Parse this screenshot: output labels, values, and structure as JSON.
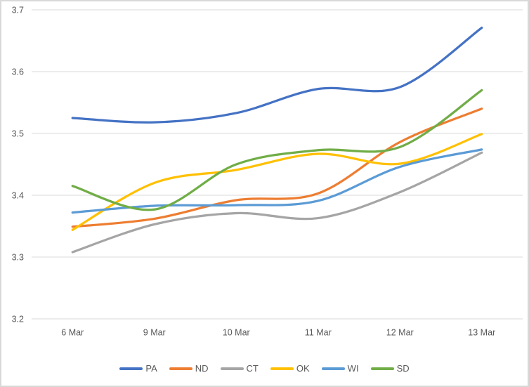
{
  "chart_data": {
    "type": "line",
    "smooth": true,
    "title": "",
    "xlabel": "",
    "ylabel": "",
    "categories": [
      "6 Mar",
      "9 Mar",
      "10 Mar",
      "11 Mar",
      "12 Mar",
      "13 Mar"
    ],
    "series": [
      {
        "name": "PA",
        "color": "#4472C4",
        "values": [
          3.525,
          3.518,
          3.533,
          3.572,
          3.575,
          3.671
        ]
      },
      {
        "name": "ND",
        "color": "#ED7D31",
        "values": [
          3.349,
          3.362,
          3.392,
          3.403,
          3.486,
          3.54
        ]
      },
      {
        "name": "CT",
        "color": "#A5A5A5",
        "values": [
          3.308,
          3.353,
          3.371,
          3.363,
          3.405,
          3.469
        ]
      },
      {
        "name": "OK",
        "color": "#FFC000",
        "values": [
          3.344,
          3.42,
          3.441,
          3.467,
          3.451,
          3.499
        ]
      },
      {
        "name": "WI",
        "color": "#5B9BD5",
        "values": [
          3.372,
          3.383,
          3.384,
          3.391,
          3.446,
          3.474
        ]
      },
      {
        "name": "SD",
        "color": "#70AD47",
        "values": [
          3.415,
          3.377,
          3.45,
          3.473,
          3.478,
          3.57
        ]
      }
    ],
    "ylim": [
      3.2,
      3.7
    ],
    "ytick_step": 0.1,
    "ytick_labels": [
      "3.2",
      "3.3",
      "3.4",
      "3.5",
      "3.6",
      "3.7"
    ],
    "grid": true,
    "gridline_color": "#d9d9d9",
    "axis_text_color": "#595959",
    "legend_position": "bottom",
    "background_color": "#ffffff",
    "border_color": "#d9d9d9"
  }
}
